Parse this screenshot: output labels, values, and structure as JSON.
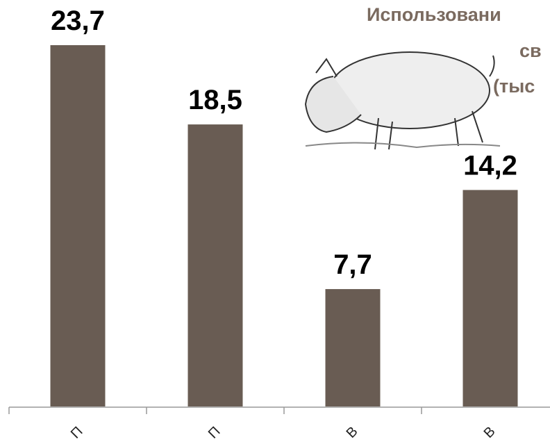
{
  "chart_data": {
    "type": "bar",
    "title_lines": [
      "Использовани",
      "св",
      "(тыс"
    ],
    "categories": [
      "П",
      "П",
      "В",
      "В"
    ],
    "values": [
      23.7,
      18.5,
      7.7,
      14.2
    ],
    "value_labels": [
      "23,7",
      "18,5",
      "7,7",
      "14,2"
    ],
    "color": "#695c53"
  }
}
